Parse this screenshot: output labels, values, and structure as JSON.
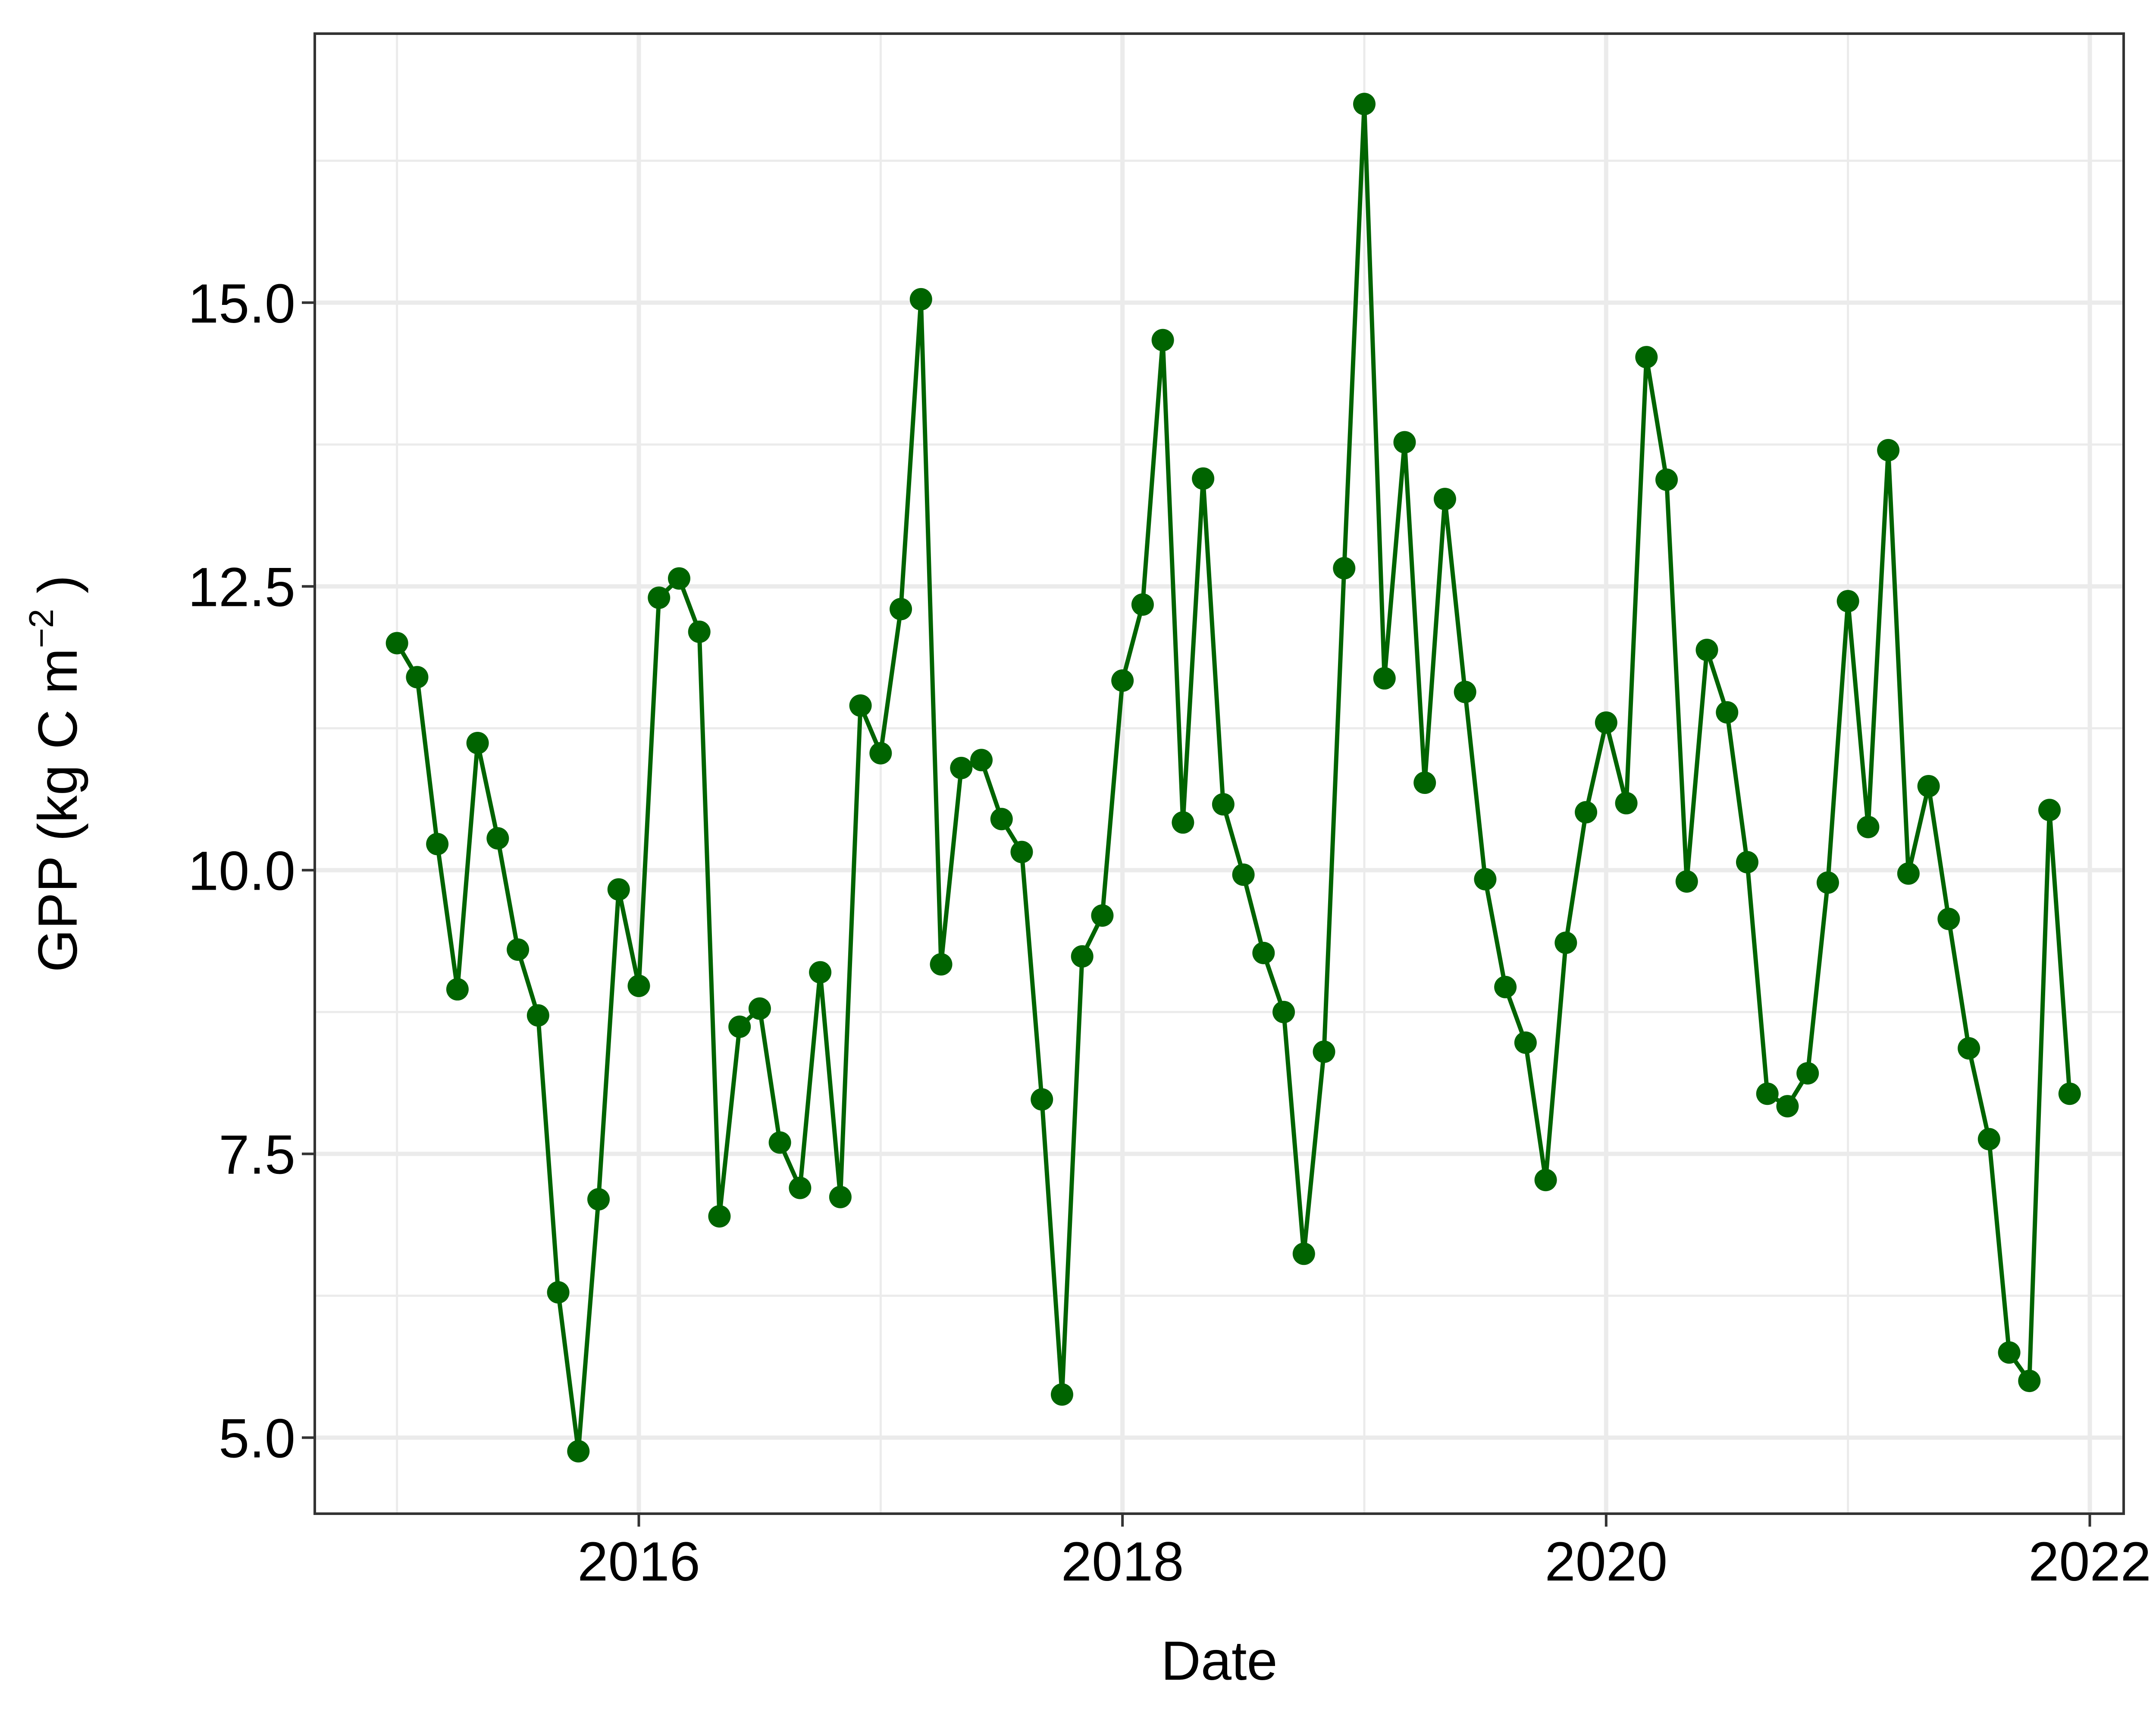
{
  "chart_data": {
    "type": "line",
    "title": "",
    "xlabel": "Date",
    "ylabel": {
      "prefix": "GPP (kg C  m",
      "superscript": "−2",
      "suffix": " )"
    },
    "xlim": [
      2014.66,
      2022.14
    ],
    "ylim": [
      4.33,
      17.37
    ],
    "x_ticks": [
      2016,
      2018,
      2020,
      2022
    ],
    "x_tick_labels": [
      "2016",
      "2018",
      "2020",
      "2022"
    ],
    "y_ticks": [
      5.0,
      7.5,
      10.0,
      12.5,
      15.0
    ],
    "y_tick_labels": [
      "5.0",
      "7.5",
      "10.0",
      "12.5",
      "15.0"
    ],
    "x_minor_ticks": [
      2015,
      2017,
      2019,
      2021
    ],
    "y_minor_ticks": [
      6.25,
      8.75,
      11.25,
      13.75,
      16.25
    ],
    "grid": true,
    "colors": {
      "series": "#006400",
      "grid": "#ebebeb",
      "panel_border": "#333333",
      "background": "#ffffff"
    },
    "series": [
      {
        "name": "GPP",
        "start_year": 2015,
        "start_month": 1,
        "values": [
          12.0,
          11.7,
          10.23,
          8.95,
          11.12,
          10.28,
          9.3,
          8.72,
          6.28,
          4.88,
          7.1,
          9.83,
          8.98,
          12.4,
          12.57,
          12.1,
          6.95,
          8.62,
          8.78,
          7.6,
          7.2,
          9.1,
          7.12,
          11.45,
          11.03,
          12.3,
          15.03,
          9.17,
          10.9,
          10.97,
          10.45,
          10.16,
          7.98,
          5.38,
          9.24,
          9.6,
          11.67,
          12.34,
          14.67,
          10.42,
          13.45,
          10.58,
          9.96,
          9.27,
          8.75,
          6.62,
          8.4,
          12.66,
          16.75,
          11.69,
          13.77,
          10.77,
          13.27,
          11.57,
          9.92,
          8.97,
          8.48,
          7.27,
          9.36,
          10.51,
          11.3,
          10.59,
          14.52,
          13.44,
          9.9,
          11.94,
          11.39,
          10.07,
          8.03,
          7.92,
          8.21,
          9.89,
          12.37,
          10.38,
          13.7,
          9.97,
          10.74,
          9.57,
          8.43,
          7.63,
          5.75,
          5.5,
          10.53,
          8.03
        ]
      }
    ]
  }
}
